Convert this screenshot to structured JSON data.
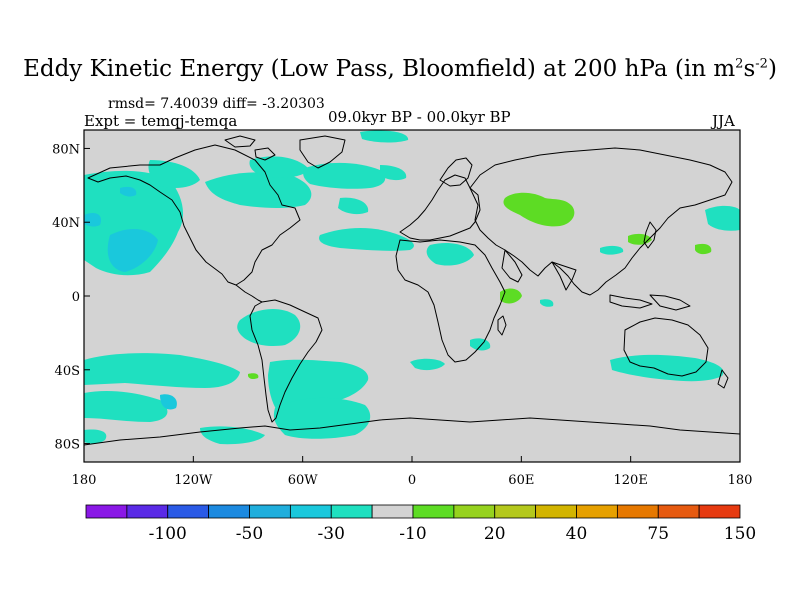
{
  "title": {
    "main": "Eddy Kinetic Energy (Low Pass, Bloomfield) at 200 hPa (in m",
    "sup1": "2",
    "mid": "s",
    "sup2": "-2",
    "end": ")"
  },
  "stats": "rmsd= 7.40039 diff= -3.20303",
  "expt": "Expt = temqj-temqa",
  "period": "09.0kyr BP - 00.0kyr BP",
  "season": "JJA",
  "colors": {
    "land_ocean": "#d3d3d3",
    "coastline": "#000000",
    "neg_small": "#1fe0c0",
    "neg_medium": "#1ac8dc",
    "pos_small": "#5ddc24"
  },
  "chart_data": {
    "type": "heatmap",
    "projection": "cylindrical-equidistant",
    "x_range": [
      -180,
      180
    ],
    "y_range": [
      -90,
      90
    ],
    "x_ticks": [
      "180",
      "120W",
      "60W",
      "0",
      "60E",
      "120E",
      "180"
    ],
    "y_ticks": [
      "80N",
      "40N",
      "0",
      "40S",
      "80S"
    ],
    "colorbar": {
      "labels": [
        "-100",
        "-50",
        "-30",
        "-10",
        "20",
        "40",
        "75",
        "150"
      ],
      "colors": [
        "#8a18e6",
        "#5a2ae6",
        "#2a5ae6",
        "#1c8ae0",
        "#20aedc",
        "#1ac8dc",
        "#1fe0c0",
        "#d3d3d3",
        "#5ddc24",
        "#96d21e",
        "#b4c81c",
        "#d2b400",
        "#e6a000",
        "#e67800",
        "#e65a10",
        "#e63a10"
      ]
    }
  }
}
